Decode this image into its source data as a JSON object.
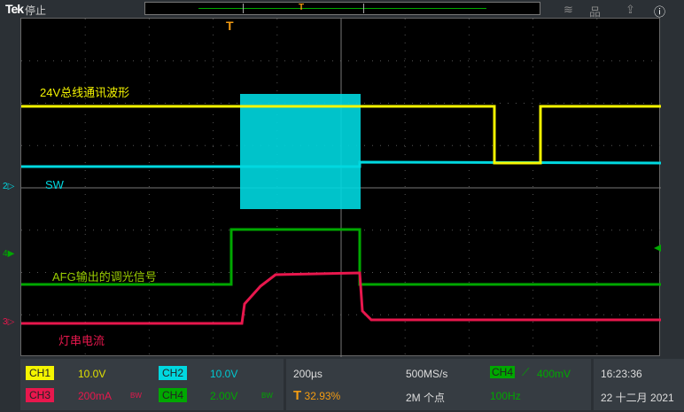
{
  "header": {
    "brand": "Tek",
    "state": "停止",
    "icons": [
      "wifi-icon",
      "network-icon",
      "export-icon",
      "help-icon"
    ]
  },
  "colors": {
    "ch1": "#f5f500",
    "ch2": "#00d8e0",
    "ch3": "#e8174d",
    "ch4": "#00a800",
    "trigger": "#f39c12"
  },
  "waveform_labels": {
    "ch1": "24V总线通讯波形",
    "ch2": "SW",
    "ch4": "AFG输出的调光信号",
    "ch3": "灯串电流"
  },
  "markers": {
    "ch2": "2",
    "ch4": "4",
    "ch3": "3",
    "trigger": "T"
  },
  "channels": [
    {
      "name": "CH1",
      "scale": "10.0V",
      "bw": ""
    },
    {
      "name": "CH2",
      "scale": "10.0V",
      "bw": ""
    },
    {
      "name": "CH3",
      "scale": "200mA",
      "bw": "BW"
    },
    {
      "name": "CH4",
      "scale": "2.00V",
      "bw": "BW"
    }
  ],
  "horizontal": {
    "scale": "200µs",
    "trigger_pos": "32.93%",
    "sample_rate": "500MS/s",
    "record_length": "2M 个点"
  },
  "trigger": {
    "source": "CH4",
    "slope": "rising",
    "level": "400mV",
    "frequency": "100Hz"
  },
  "datetime": {
    "time": "16:23:36",
    "date": "22 十二月 2021"
  }
}
